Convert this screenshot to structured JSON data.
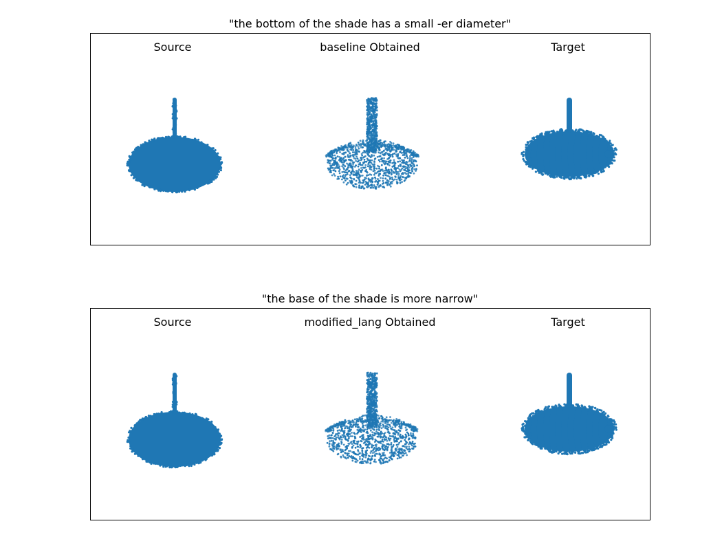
{
  "chart_data": [
    {
      "type": "scatter",
      "title": "\"the bottom of the shade has a small -er diameter\"",
      "point_color": "#1f77b4",
      "subplots": [
        {
          "label": "Source",
          "shape": "source"
        },
        {
          "label": "baseline Obtained",
          "shape": "obtained"
        },
        {
          "label": "Target",
          "shape": "target"
        }
      ]
    },
    {
      "type": "scatter",
      "title": "\"the base of the shade is more narrow\"",
      "point_color": "#1f77b4",
      "subplots": [
        {
          "label": "Source",
          "shape": "source"
        },
        {
          "label": "modified_lang Obtained",
          "shape": "obtained"
        },
        {
          "label": "Target",
          "shape": "target"
        }
      ]
    }
  ]
}
